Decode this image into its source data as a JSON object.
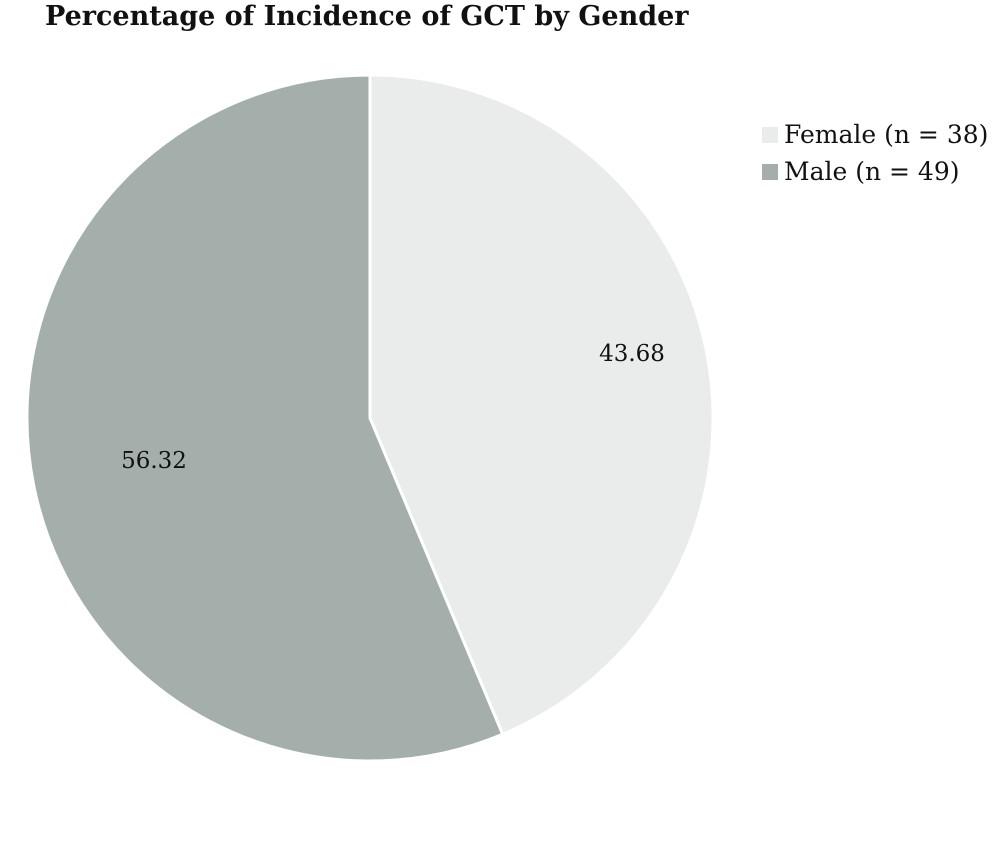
{
  "chart_data": {
    "type": "pie",
    "title": "Percentage of Incidence of GCT by Gender",
    "slices": [
      {
        "label": "Female (n = 38)",
        "value": 43.68,
        "value_label": "43.68",
        "color": "#e9ecea"
      },
      {
        "label": "Male (n = 49)",
        "value": 56.32,
        "value_label": "56.32",
        "color": "#a4afac"
      }
    ],
    "start": "12 o'clock",
    "direction": "clockwise",
    "legend_position": "top-right"
  }
}
